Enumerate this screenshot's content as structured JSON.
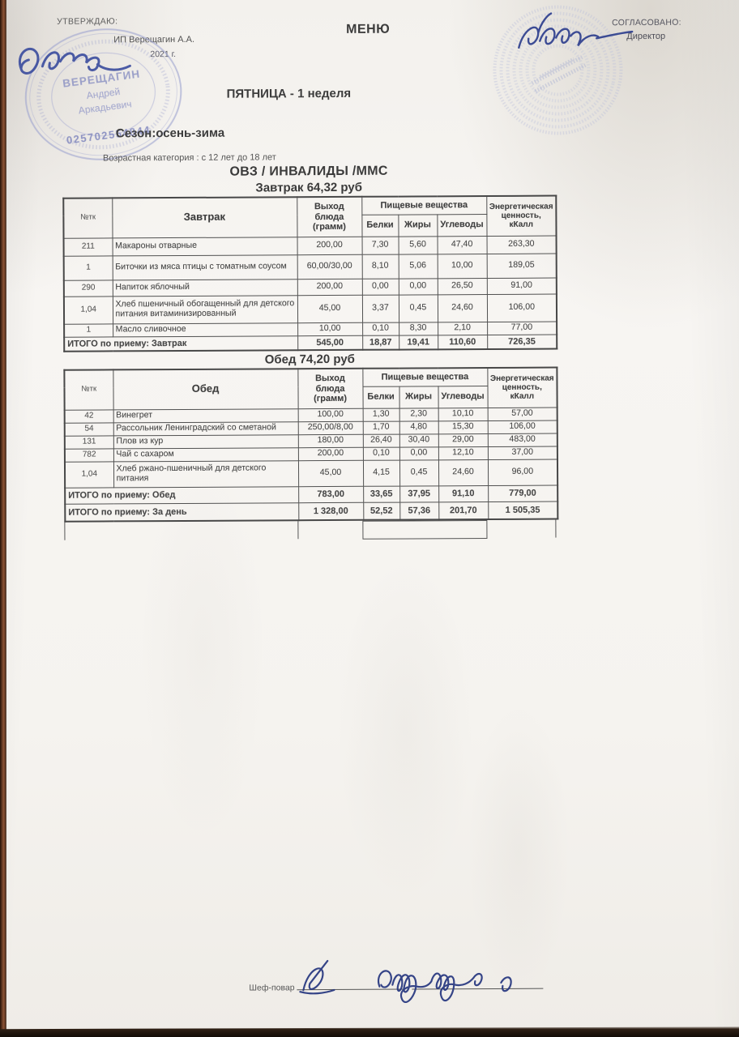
{
  "page": {
    "approve_label": "УТВЕРЖДАЮ:",
    "approve_name": "ИП Верещагин А.А.",
    "approve_year": "2021 г.",
    "title": "МЕНЮ",
    "agreed_label": "СОГЛАСОВАНО:",
    "agreed_role": "Директор",
    "weekday": "ПЯТНИЦА - 1 неделя",
    "season": "Сезон:осень-зима",
    "age_category": "Возрастная категория : с 12 лет до 18 лет",
    "category": "ОВЗ / ИНВАЛИДЫ /ММС",
    "chef_label": "Шеф-повар"
  },
  "stamp_left": {
    "surname": "ВЕРЕЩАГИН",
    "first_name": "Андрей",
    "patronymic": "Аркадьевич",
    "number": "025702554844",
    "ink_color": "#8d93c4"
  },
  "stamp_right": {
    "ink_color": "#b3bad9"
  },
  "signature_ink": "#32439a",
  "tables": [
    {
      "title": "Завтрак 64,32 руб",
      "num_col": "№тк",
      "meal_col": "Завтрак",
      "out_col": "Выход блюда (грамм)",
      "group_col": "Пищевые вещества",
      "nutrients": [
        "Белки",
        "Жиры",
        "Углеводы"
      ],
      "energy_col": "Энергетическая ценность, кКалл",
      "rows": [
        {
          "num": "211",
          "name": "Макароны отварные",
          "out": "200,00",
          "protein": "7,30",
          "fat": "5,60",
          "carbs": "47,40",
          "kcal": "263,30"
        },
        {
          "num": "1",
          "name": "Биточки из мяса птицы с томатным соусом",
          "out": "60,00/30,00",
          "protein": "8,10",
          "fat": "5,06",
          "carbs": "10,00",
          "kcal": "189,05"
        },
        {
          "num": "290",
          "name": "Напиток яблочный",
          "out": "200,00",
          "protein": "0,00",
          "fat": "0,00",
          "carbs": "26,50",
          "kcal": "91,00"
        },
        {
          "num": "1,04",
          "name": "Хлеб пшеничный обогащенный для детского питания витаминизированный",
          "out": "45,00",
          "protein": "3,37",
          "fat": "0,45",
          "carbs": "24,60",
          "kcal": "106,00"
        },
        {
          "num": "1",
          "name": "Масло сливочное",
          "out": "10,00",
          "protein": "0,10",
          "fat": "8,30",
          "carbs": "2,10",
          "kcal": "77,00"
        }
      ],
      "totals": [
        {
          "label": "ИТОГО по приему: Завтрак",
          "out": "545,00",
          "protein": "18,87",
          "fat": "19,41",
          "carbs": "110,60",
          "kcal": "726,35"
        }
      ]
    },
    {
      "title": "Обед 74,20 руб",
      "num_col": "№тк",
      "meal_col": "Обед",
      "out_col": "Выход блюда (грамм)",
      "group_col": "Пищевые вещества",
      "nutrients": [
        "Белки",
        "Жиры",
        "Углеводы"
      ],
      "energy_col": "Энергетическая ценность, кКалл",
      "rows": [
        {
          "num": "42",
          "name": "Винегрет",
          "out": "100,00",
          "protein": "1,30",
          "fat": "2,30",
          "carbs": "10,10",
          "kcal": "57,00"
        },
        {
          "num": "54",
          "name": "Рассольник Ленинградский со сметаной",
          "out": "250,00/8,00",
          "protein": "1,70",
          "fat": "4,80",
          "carbs": "15,30",
          "kcal": "106,00"
        },
        {
          "num": "131",
          "name": "Плов из кур",
          "out": "180,00",
          "protein": "26,40",
          "fat": "30,40",
          "carbs": "29,00",
          "kcal": "483,00"
        },
        {
          "num": "782",
          "name": "Чай с сахаром",
          "out": "200,00",
          "protein": "0,10",
          "fat": "0,00",
          "carbs": "12,10",
          "kcal": "37,00"
        },
        {
          "num": "1,04",
          "name": "Хлеб ржано-пшеничный для детского питания",
          "out": "45,00",
          "protein": "4,15",
          "fat": "0,45",
          "carbs": "24,60",
          "kcal": "96,00"
        }
      ],
      "totals": [
        {
          "label": "ИТОГО по приему: Обед",
          "out": "783,00",
          "protein": "33,65",
          "fat": "37,95",
          "carbs": "91,10",
          "kcal": "779,00"
        },
        {
          "label": "ИТОГО по приему: За день",
          "out": "1 328,00",
          "protein": "52,52",
          "fat": "57,36",
          "carbs": "201,70",
          "kcal": "1 505,35"
        }
      ]
    }
  ]
}
